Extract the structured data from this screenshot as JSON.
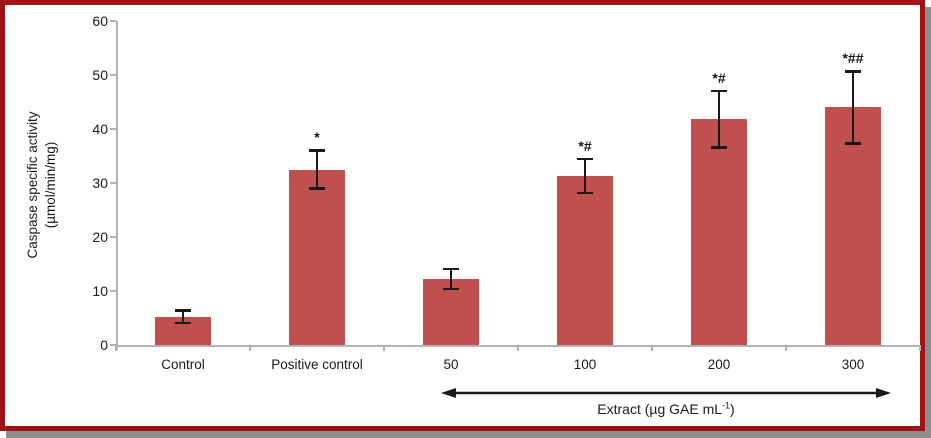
{
  "figure": {
    "border_color": "#a01318",
    "shadow_color": "#8e8e8e",
    "background": "#ffffff"
  },
  "chart_data": {
    "type": "bar",
    "title": "",
    "ylabel_line1": "Caspase specific activity",
    "ylabel_line2": "(µmol/min/mg)",
    "xlabel": "",
    "ylim": [
      0,
      60
    ],
    "yticks": [
      0,
      10,
      20,
      30,
      40,
      50,
      60
    ],
    "grid": false,
    "legend": "none",
    "bar_color": "#c0504d",
    "error_bar_color": "#1a1a1a",
    "categories": [
      "Control",
      "Positive control",
      "50",
      "100",
      "200",
      "300"
    ],
    "values": [
      5.2,
      32.5,
      12.2,
      31.3,
      41.8,
      44.0
    ],
    "errors": [
      1.2,
      3.6,
      1.9,
      3.2,
      5.3,
      6.7
    ],
    "annotations": [
      "",
      "*",
      "",
      "*#",
      "*#",
      "*##"
    ],
    "group": {
      "arrow_from_category": "50",
      "arrow_to_category": "300",
      "label_pre": "Extract (µg GAE mL",
      "label_sup": "-1",
      "label_post": ")"
    }
  }
}
